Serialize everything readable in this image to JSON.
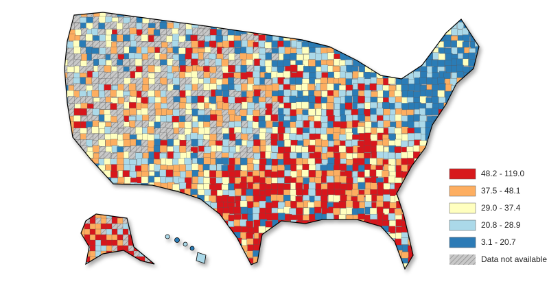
{
  "legend": {
    "items": [
      {
        "label": "48.2 - 119.0",
        "color": "#d7191c"
      },
      {
        "label": "37.5 - 48.1",
        "color": "#fdae61"
      },
      {
        "label": "29.0 - 37.4",
        "color": "#ffffbf"
      },
      {
        "label": "20.8 - 28.9",
        "color": "#abd9e9"
      },
      {
        "label": "3.1 - 20.7",
        "color": "#2c7bb6"
      }
    ],
    "no_data": "Data not available"
  }
}
